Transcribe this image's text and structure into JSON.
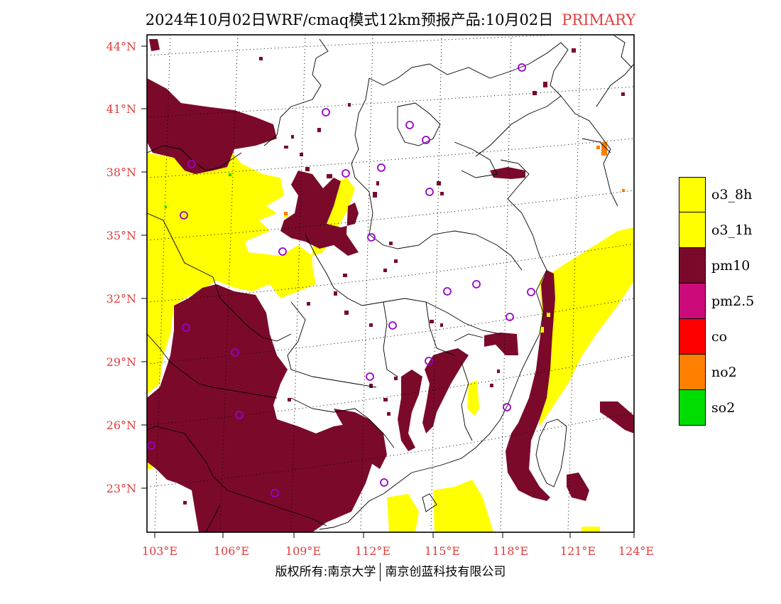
{
  "header": {
    "title": "2024年10月02日WRF/cmaq模式12km预报产品:10月02日",
    "tag": "PRIMARY"
  },
  "map": {
    "lat_labels": [
      "44°N",
      "41°N",
      "38°N",
      "35°N",
      "32°N",
      "29°N",
      "26°N",
      "23°N"
    ],
    "lon_labels": [
      "103°E",
      "106°E",
      "109°E",
      "112°E",
      "115°E",
      "118°E",
      "121°E",
      "124°E"
    ]
  },
  "legend": {
    "items": [
      {
        "label": "o3_8h",
        "color": "#ffff00"
      },
      {
        "label": "o3_1h",
        "color": "#ffff00"
      },
      {
        "label": "pm10",
        "color": "#7b0a2a"
      },
      {
        "label": "pm2.5",
        "color": "#cc0a7a"
      },
      {
        "label": "co",
        "color": "#ff0000"
      },
      {
        "label": "no2",
        "color": "#ff7f00"
      },
      {
        "label": "so2",
        "color": "#00dd00"
      }
    ]
  },
  "footer": {
    "left": "版权所有:南京大学",
    "right": "南京创蓝科技有限公司"
  }
}
